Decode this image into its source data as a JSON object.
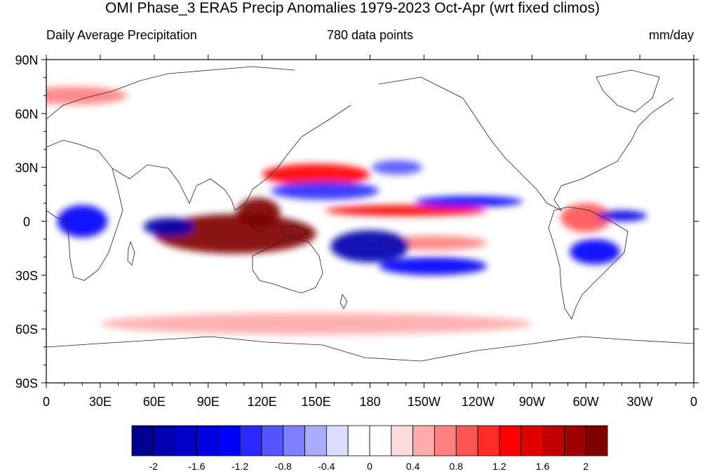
{
  "title": "OMI Phase_3 ERA5 Precip Anomalies 1979-2023 Oct-Apr (wrt fixed climos)",
  "subtitle_left": "Daily Average Precipitation",
  "subtitle_center": "780 data points",
  "subtitle_right": "mm/day",
  "map": {
    "projection": "cylindrical-equidistant",
    "lon_range": [
      0,
      360
    ],
    "lat_range": [
      -90,
      90
    ],
    "lat_ticks": [
      {
        "value": 90,
        "label": "90N"
      },
      {
        "value": 60,
        "label": "60N"
      },
      {
        "value": 30,
        "label": "30N"
      },
      {
        "value": 0,
        "label": "0"
      },
      {
        "value": -30,
        "label": "30S"
      },
      {
        "value": -60,
        "label": "60S"
      },
      {
        "value": -90,
        "label": "90S"
      }
    ],
    "lon_ticks": [
      {
        "value": 0,
        "label": "0"
      },
      {
        "value": 30,
        "label": "30E"
      },
      {
        "value": 60,
        "label": "60E"
      },
      {
        "value": 90,
        "label": "90E"
      },
      {
        "value": 120,
        "label": "120E"
      },
      {
        "value": 150,
        "label": "150E"
      },
      {
        "value": 180,
        "label": "180"
      },
      {
        "value": 210,
        "label": "150W"
      },
      {
        "value": 240,
        "label": "120W"
      },
      {
        "value": 270,
        "label": "90W"
      },
      {
        "value": 300,
        "label": "60W"
      },
      {
        "value": 330,
        "label": "30W"
      },
      {
        "value": 360,
        "label": "0"
      }
    ],
    "anomaly_regions": [
      {
        "name": "indian-ocean-maritime-continent-wet",
        "lon": 105,
        "lat": -7,
        "rlon": 45,
        "rlat": 11,
        "value": 2.2
      },
      {
        "name": "south-china-sea-wet",
        "lon": 118,
        "lat": 5,
        "rlon": 12,
        "rlat": 8,
        "value": 2.1
      },
      {
        "name": "north-pacific-wet-band",
        "lon": 150,
        "lat": 26,
        "rlon": 30,
        "rlat": 6,
        "value": 1.3
      },
      {
        "name": "equatorial-central-pacific-wet",
        "lon": 200,
        "lat": 6,
        "rlon": 45,
        "rlat": 3,
        "value": 1.2
      },
      {
        "name": "south-pacific-wet",
        "lon": 215,
        "lat": -12,
        "rlon": 30,
        "rlat": 4,
        "value": 0.7
      },
      {
        "name": "south-america-wet",
        "lon": 300,
        "lat": 2,
        "rlon": 14,
        "rlat": 8,
        "value": 0.9
      },
      {
        "name": "west-indian-ocean-dry",
        "lon": 68,
        "lat": -3,
        "rlon": 14,
        "rlat": 5,
        "value": -1.9
      },
      {
        "name": "east-africa-dry",
        "lon": 20,
        "lat": 0,
        "rlon": 14,
        "rlat": 9,
        "value": -1.4
      },
      {
        "name": "west-pacific-dry",
        "lon": 180,
        "lat": -14,
        "rlon": 22,
        "rlat": 9,
        "value": -2.0
      },
      {
        "name": "spcz-dry-band",
        "lon": 215,
        "lat": -25,
        "rlon": 30,
        "rlat": 5,
        "value": -1.3
      },
      {
        "name": "north-equatorial-pacific-dry",
        "lon": 155,
        "lat": 17,
        "rlon": 30,
        "rlat": 5,
        "value": -1.2
      },
      {
        "name": "eastern-pacific-dry",
        "lon": 235,
        "lat": 11,
        "rlon": 30,
        "rlat": 3,
        "value": -1.3
      },
      {
        "name": "equatorial-atlantic-dry",
        "lon": 320,
        "lat": 3,
        "rlon": 14,
        "rlat": 3,
        "value": -1.6
      },
      {
        "name": "brazil-dry",
        "lon": 305,
        "lat": -17,
        "rlon": 14,
        "rlat": 7,
        "value": -1.3
      },
      {
        "name": "subtropical-pacific-dry",
        "lon": 195,
        "lat": 30,
        "rlon": 14,
        "rlat": 4,
        "value": -0.9
      },
      {
        "name": "southern-ocean-wet",
        "lon": 150,
        "lat": -57,
        "rlon": 120,
        "rlat": 6,
        "value": 0.5
      },
      {
        "name": "northern-europe-wet",
        "lon": 15,
        "lat": 70,
        "rlon": 30,
        "rlat": 5,
        "value": 0.6
      }
    ]
  },
  "colorbar": {
    "colors": [
      "#000090",
      "#0000b0",
      "#0000c8",
      "#0000e0",
      "#0000ff",
      "#2a2aff",
      "#5555ff",
      "#8080ff",
      "#aaaaff",
      "#dcdcff",
      "#ffffff",
      "#ffffff",
      "#ffdcdc",
      "#ffaaaa",
      "#ff8080",
      "#ff5555",
      "#ff2a2a",
      "#ff0000",
      "#e00000",
      "#c00000",
      "#a00000",
      "#800000"
    ],
    "labels": [
      "-2",
      "-1.6",
      "-1.2",
      "-0.8",
      "-0.4",
      "0",
      "0.4",
      "0.8",
      "1.2",
      "1.6",
      "2"
    ],
    "min": -2.2,
    "max": 2.2
  }
}
